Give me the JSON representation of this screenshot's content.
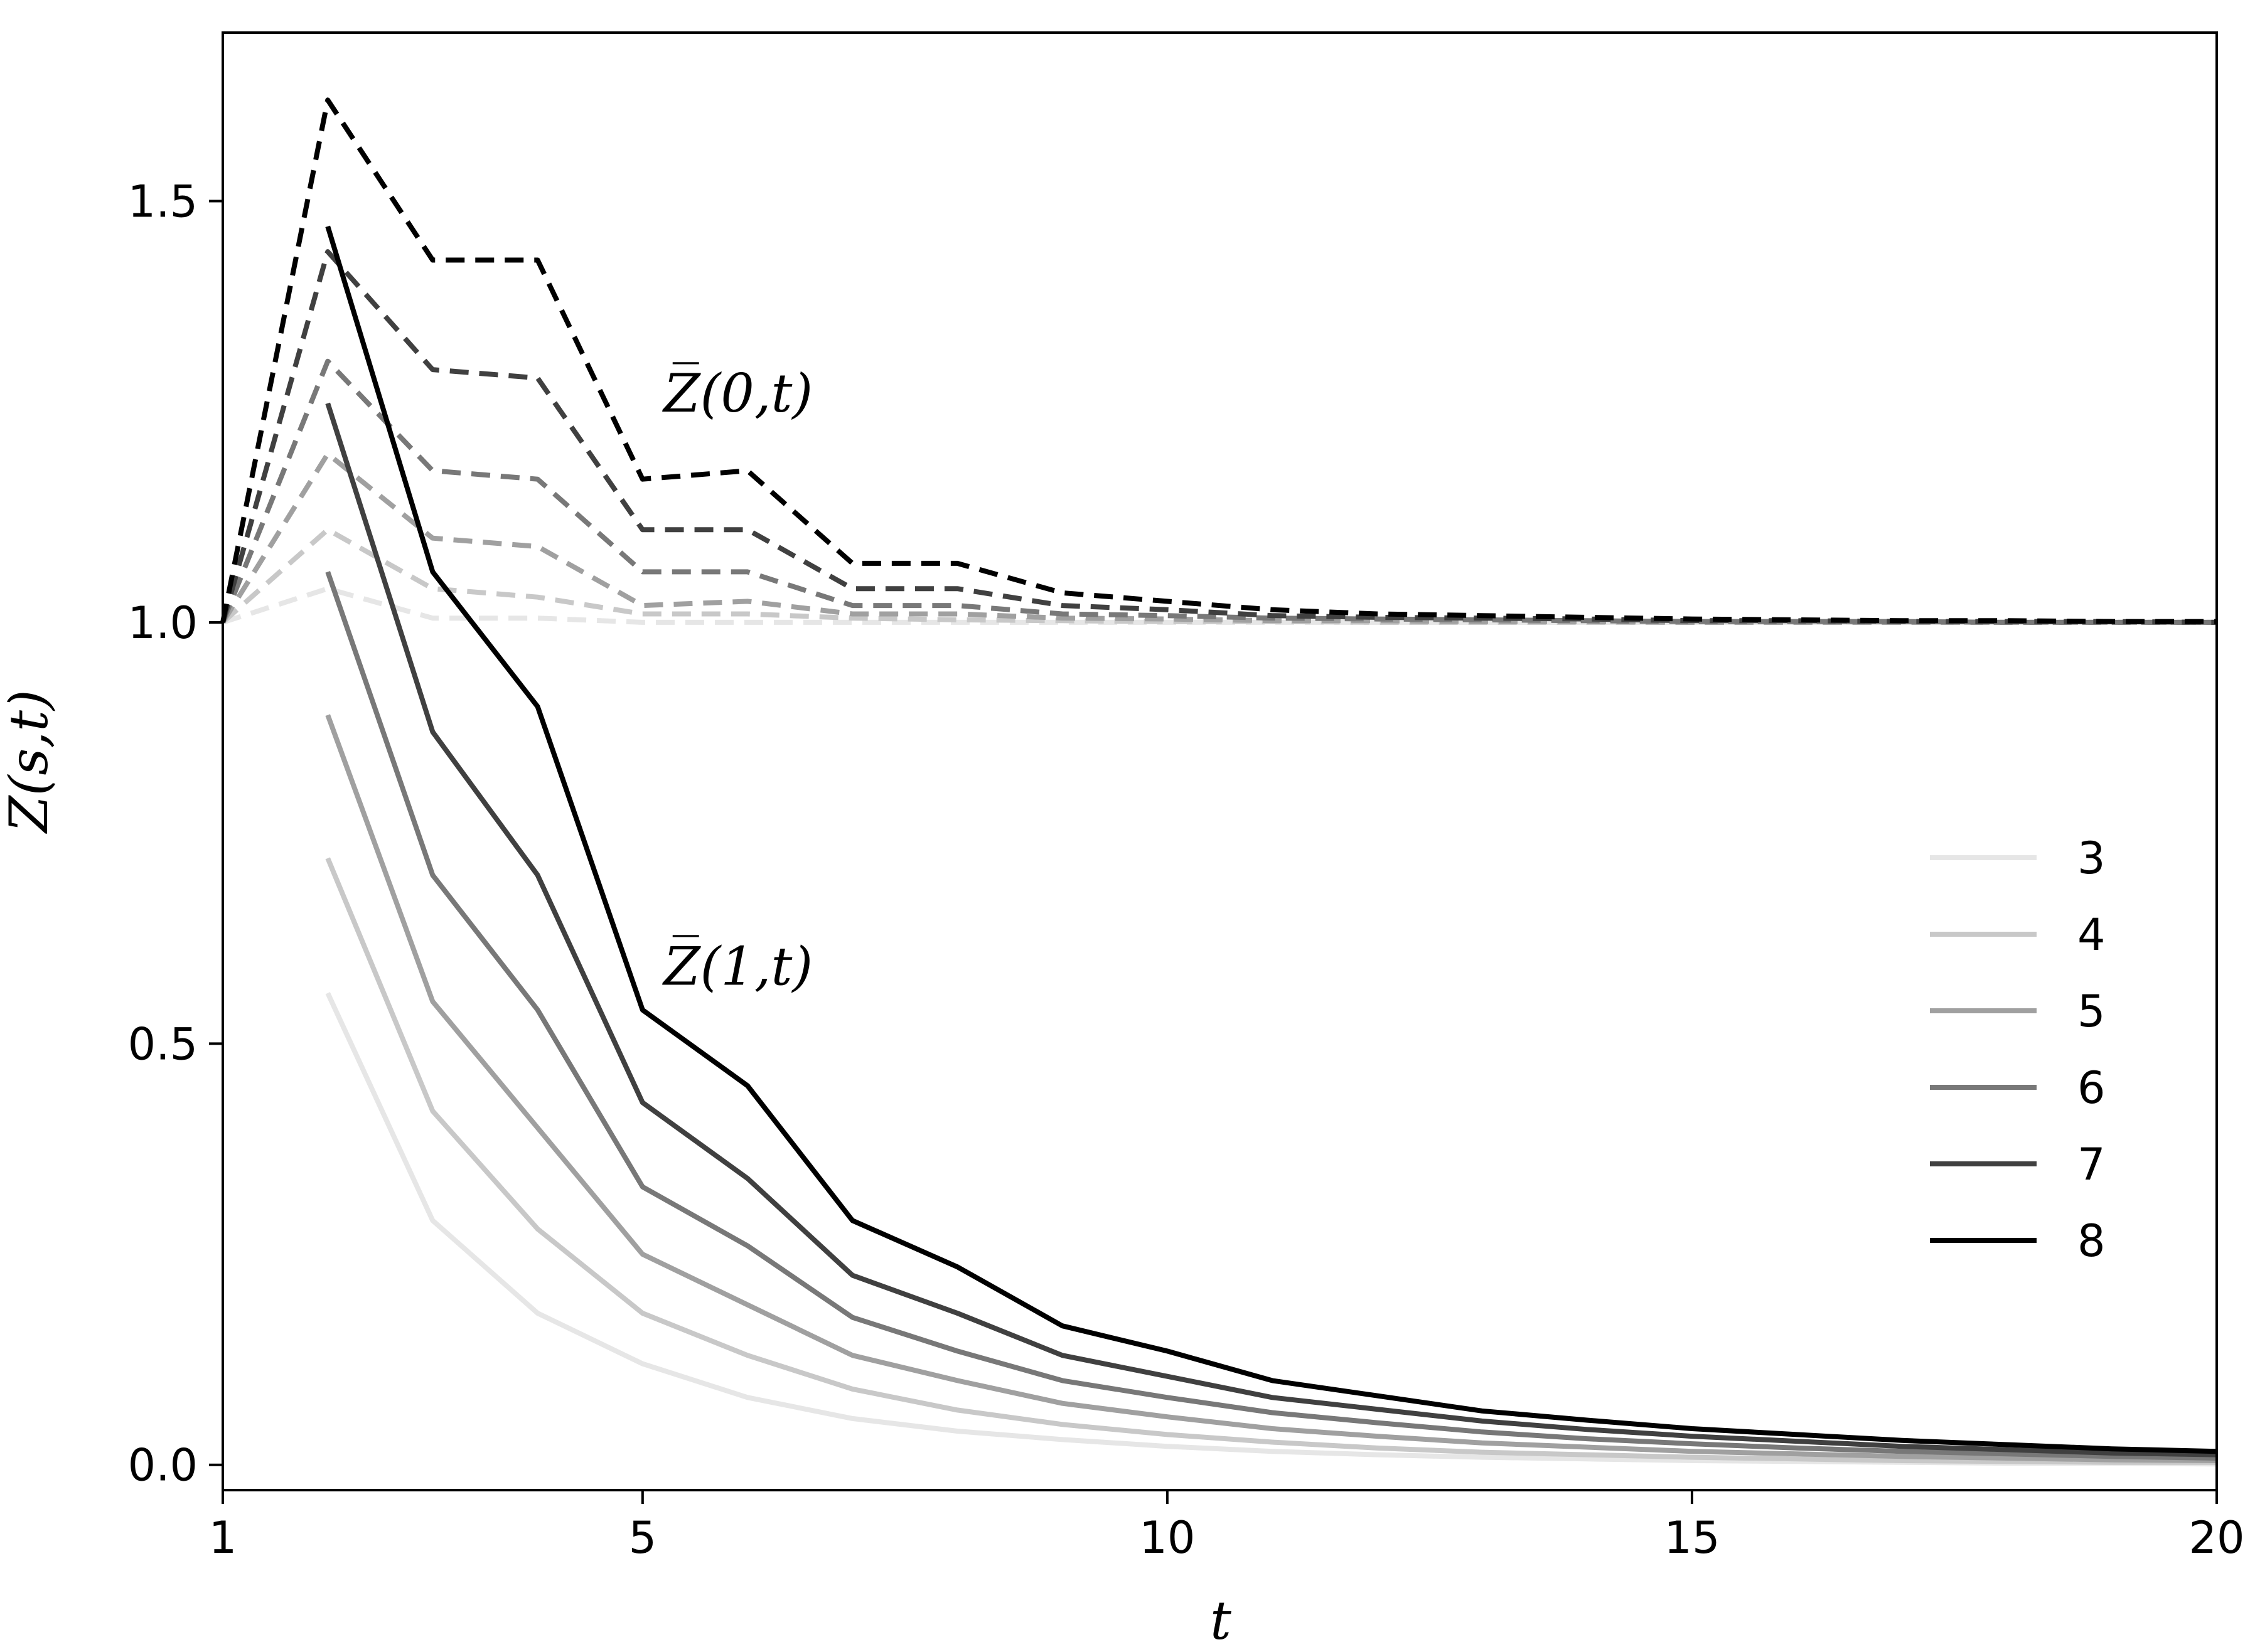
{
  "chart_data": {
    "type": "line",
    "title": "",
    "xlabel": "t",
    "ylabel": "Z̅(s,t)",
    "xlim": [
      1,
      20
    ],
    "ylim": [
      -0.03,
      1.7
    ],
    "xticks": [
      "1",
      "5",
      "10",
      "15",
      "20"
    ],
    "yticks": [
      "0.0",
      "0.5",
      "1.0",
      "1.5"
    ],
    "grid": false,
    "legend_position": "right, center-lower",
    "annotations": [
      {
        "id": "z0",
        "text": "Z̅(0,t)",
        "x": 5.2,
        "y": 1.25
      },
      {
        "id": "z1",
        "text": "Z̅(1,t)",
        "x": 5.2,
        "y": 0.57
      }
    ],
    "x": [
      1,
      2,
      3,
      4,
      5,
      6,
      7,
      8,
      9,
      10,
      11,
      12,
      13,
      14,
      15,
      16,
      17,
      18,
      19,
      20
    ],
    "series": [
      {
        "name": "3",
        "color": "#e6e6e6",
        "z0": [
          1.0,
          1.04,
          1.005,
          1.005,
          1.0,
          1.0,
          1.0,
          1.0,
          1.0,
          1.0,
          1.0,
          1.0,
          1.0,
          1.0,
          1.0,
          1.0,
          1.0,
          1.0,
          1.0,
          1.0
        ],
        "z1": [
          null,
          0.56,
          0.29,
          0.18,
          0.12,
          0.08,
          0.055,
          0.04,
          0.03,
          0.022,
          0.016,
          0.012,
          0.009,
          0.007,
          0.005,
          0.004,
          0.003,
          0.002,
          0.002,
          0.001
        ]
      },
      {
        "name": "4",
        "color": "#c8c8c8",
        "z0": [
          1.0,
          1.11,
          1.04,
          1.03,
          1.01,
          1.01,
          1.005,
          1.003,
          1.002,
          1.001,
          1.001,
          1.0,
          1.0,
          1.0,
          1.0,
          1.0,
          1.0,
          1.0,
          1.0,
          1.0
        ],
        "z1": [
          null,
          0.72,
          0.42,
          0.28,
          0.18,
          0.13,
          0.09,
          0.065,
          0.048,
          0.036,
          0.027,
          0.02,
          0.015,
          0.012,
          0.009,
          0.007,
          0.005,
          0.004,
          0.003,
          0.003
        ]
      },
      {
        "name": "5",
        "color": "#a0a0a0",
        "z0": [
          1.0,
          1.2,
          1.1,
          1.09,
          1.02,
          1.025,
          1.01,
          1.01,
          1.005,
          1.004,
          1.002,
          1.002,
          1.001,
          1.001,
          1.0,
          1.0,
          1.0,
          1.0,
          1.0,
          1.0
        ],
        "z1": [
          null,
          0.89,
          0.55,
          0.4,
          0.25,
          0.19,
          0.13,
          0.1,
          0.073,
          0.057,
          0.043,
          0.034,
          0.026,
          0.021,
          0.016,
          0.013,
          0.01,
          0.008,
          0.006,
          0.005
        ]
      },
      {
        "name": "6",
        "color": "#787878",
        "z0": [
          1.0,
          1.31,
          1.18,
          1.17,
          1.06,
          1.06,
          1.02,
          1.02,
          1.01,
          1.008,
          1.005,
          1.004,
          1.003,
          1.002,
          1.001,
          1.001,
          1.001,
          1.0,
          1.0,
          1.0
        ],
        "z1": [
          null,
          1.06,
          0.7,
          0.54,
          0.33,
          0.26,
          0.175,
          0.135,
          0.1,
          0.08,
          0.062,
          0.05,
          0.039,
          0.031,
          0.025,
          0.02,
          0.016,
          0.013,
          0.01,
          0.008
        ]
      },
      {
        "name": "7",
        "color": "#404040",
        "z0": [
          1.0,
          1.44,
          1.3,
          1.29,
          1.11,
          1.11,
          1.04,
          1.04,
          1.02,
          1.015,
          1.008,
          1.006,
          1.005,
          1.004,
          1.002,
          1.002,
          1.001,
          1.001,
          1.001,
          1.0
        ],
        "z1": [
          null,
          1.26,
          0.87,
          0.7,
          0.43,
          0.34,
          0.225,
          0.18,
          0.13,
          0.105,
          0.08,
          0.066,
          0.052,
          0.042,
          0.034,
          0.028,
          0.022,
          0.018,
          0.014,
          0.012
        ]
      },
      {
        "name": "8",
        "color": "#000000",
        "z0": [
          1.0,
          1.62,
          1.43,
          1.43,
          1.17,
          1.18,
          1.07,
          1.07,
          1.035,
          1.025,
          1.015,
          1.01,
          1.008,
          1.006,
          1.004,
          1.003,
          1.002,
          1.002,
          1.001,
          1.001
        ],
        "z1": [
          null,
          1.47,
          1.06,
          0.9,
          0.54,
          0.45,
          0.29,
          0.235,
          0.165,
          0.135,
          0.1,
          0.082,
          0.064,
          0.053,
          0.043,
          0.036,
          0.029,
          0.024,
          0.019,
          0.016
        ]
      }
    ]
  }
}
